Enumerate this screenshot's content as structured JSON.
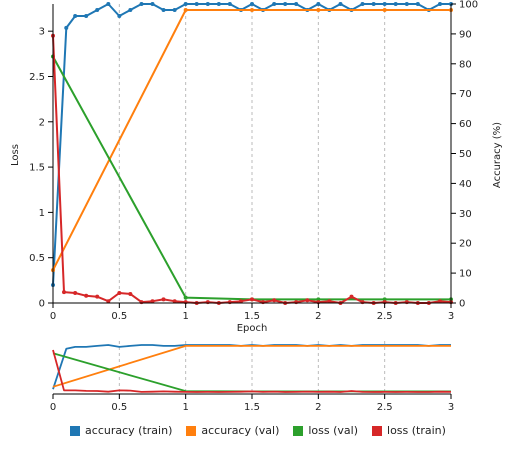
{
  "chart_data": {
    "type": "line",
    "xlabel": "Epoch",
    "ylabel_left": "Loss",
    "ylabel_right": "Accuracy (%)",
    "xlim": [
      0,
      3
    ],
    "ylim_left": [
      0,
      3.3
    ],
    "ylim_right": [
      0,
      100
    ],
    "x_ticks": [
      "0",
      "0.5",
      "1",
      "1.5",
      "2",
      "2.5",
      "3"
    ],
    "y_left_ticks": [
      "0",
      "0.5",
      "1",
      "1.5",
      "2",
      "2.5",
      "3"
    ],
    "y_right_ticks": [
      "0",
      "10",
      "20",
      "30",
      "40",
      "50",
      "60",
      "70",
      "80",
      "90",
      "100"
    ],
    "grid": "vertical dashed",
    "legend_position": "bottom",
    "series": [
      {
        "name": "accuracy (train)",
        "axis": "right",
        "color": "#1f77b4",
        "markers": true,
        "x": [
          0,
          0.1,
          0.167,
          0.25,
          0.333,
          0.417,
          0.5,
          0.583,
          0.667,
          0.75,
          0.833,
          0.917,
          1.0,
          1.083,
          1.167,
          1.25,
          1.333,
          1.417,
          1.5,
          1.583,
          1.667,
          1.75,
          1.833,
          1.917,
          2.0,
          2.083,
          2.167,
          2.25,
          2.333,
          2.417,
          2.5,
          2.583,
          2.667,
          2.75,
          2.833,
          2.917,
          3.0
        ],
        "y": [
          6,
          92,
          96,
          96,
          98,
          100,
          96,
          98,
          100,
          100,
          98,
          98,
          100,
          100,
          100,
          100,
          100,
          98,
          100,
          98,
          100,
          100,
          100,
          98,
          100,
          98,
          100,
          98,
          100,
          100,
          100,
          100,
          100,
          100,
          98,
          100,
          100
        ]
      },
      {
        "name": "accuracy (val)",
        "axis": "right",
        "color": "#ff7f0e",
        "markers": true,
        "x": [
          0,
          1.0,
          1.5,
          2.0,
          2.5,
          3.0
        ],
        "y": [
          11,
          98,
          98,
          98,
          98,
          98
        ]
      },
      {
        "name": "loss (val)",
        "axis": "left",
        "color": "#2ca02c",
        "markers": true,
        "x": [
          0,
          1.0,
          1.5,
          2.0,
          2.5,
          3.0
        ],
        "y": [
          2.72,
          0.06,
          0.04,
          0.04,
          0.04,
          0.04
        ]
      },
      {
        "name": "loss (train)",
        "axis": "left",
        "color": "#d62728",
        "markers": true,
        "x": [
          0,
          0.083,
          0.167,
          0.25,
          0.333,
          0.417,
          0.5,
          0.583,
          0.667,
          0.75,
          0.833,
          0.917,
          1.0,
          1.083,
          1.167,
          1.25,
          1.333,
          1.417,
          1.5,
          1.583,
          1.667,
          1.75,
          1.833,
          1.917,
          2.0,
          2.083,
          2.167,
          2.25,
          2.333,
          2.417,
          2.5,
          2.583,
          2.667,
          2.75,
          2.833,
          2.917,
          3.0
        ],
        "y": [
          2.95,
          0.12,
          0.11,
          0.08,
          0.07,
          0.02,
          0.11,
          0.1,
          0.01,
          0.02,
          0.04,
          0.02,
          0.01,
          0.0,
          0.01,
          0.0,
          0.01,
          0.02,
          0.04,
          0.01,
          0.03,
          0.0,
          0.01,
          0.03,
          0.01,
          0.02,
          0.0,
          0.07,
          0.01,
          0.0,
          0.01,
          0.0,
          0.01,
          0.0,
          0.0,
          0.02,
          0.01
        ]
      }
    ]
  }
}
